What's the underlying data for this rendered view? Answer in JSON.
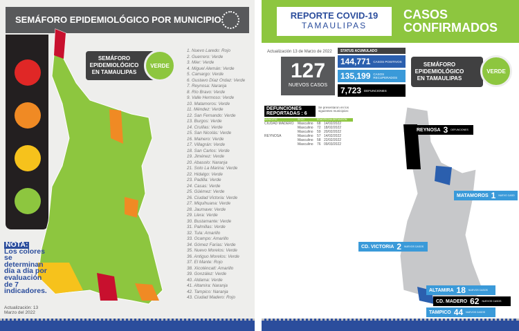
{
  "left": {
    "title": "SEMÁFORO EPIDEMIOLÓGICO POR MUNICIPIO",
    "badge_label": "SEMÁFORO EPIDEMIOLÓGICO EN TAMAULIPAS",
    "badge_status": "VERDE",
    "traffic_light_colors": [
      "#e02726",
      "#f08a24",
      "#f6c21c",
      "#8dc63f"
    ],
    "municipios": [
      "1. Nuevo Laredo: Rojo",
      "2. Guerrero: Verde",
      "3. Mier: Verde",
      "4. Miguel Alemán: Verde",
      "5. Camargo: Verde",
      "6. Gustavo Díaz Ordaz: Verde",
      "7. Reynosa: Naranja",
      "8. Río Bravo: Verde",
      "9. Valle Hermoso: Verde",
      "10. Matamoros: Verde",
      "11. Méndez: Verde",
      "12. San Fernando: Verde",
      "13. Burgos: Verde",
      "14. Cruillas: Verde",
      "15. San Nicolás: Verde",
      "16. Mainero: Verde",
      "17. Villagrán: Verde",
      "18. San Carlos: Verde",
      "19. Jiménez: Verde",
      "20. Abasolo: Naranja",
      "21. Soto La Marina: Verde",
      "22. Hidalgo: Verde",
      "23. Padilla: Verde",
      "24. Casas: Verde",
      "25. Güémez: Verde",
      "26. Ciudad Victoria: Verde",
      "27. Miquihuana: Verde",
      "28. Jaumave: Verde",
      "29. Llera: Verde",
      "30. Bustamante: Verde",
      "31. Palmillas: Verde",
      "32. Tula: Amarillo",
      "33. Ocampo: Amarillo",
      "34. Gómez Farías: Verde",
      "35. Nuevo Morelos: Verde",
      "36. Antiguo Morelos: Verde",
      "37. El Mante: Rojo",
      "38. Xicoténcatl: Amarillo",
      "39. González: Verde",
      "40. Aldama: Verde",
      "41. Altamira: Naranja",
      "42. Tampico: Naranja",
      "43. Ciudad Madero: Rojo"
    ],
    "nota_title": "NOTA:",
    "nota_text": "Los colores se determinan día a día por evaluación de 7 indicadores.",
    "update": "Actualización: 13 Marzo del 2022"
  },
  "right": {
    "logo_line1": "REPORTE COVID-19",
    "logo_line2": "TAMAULIPAS",
    "title": "CASOS CONFIRMADOS",
    "update": "Actualización 13 de Marzo de 2022",
    "new_cases": "127",
    "new_cases_label": "NUEVOS CASOS",
    "status_label": "STATUS ACUMULADO",
    "positivos": {
      "value": "144,771",
      "label": "CASOS POSITIVOS"
    },
    "recuperados": {
      "value": "135,199",
      "label": "CASOS RECUPERADOS"
    },
    "defunciones": {
      "value": "7,723",
      "label": "DEFUNCIONES"
    },
    "badge_label": "SEMÁFORO EPIDEMIOLÓGICO EN TAMAULIPAS",
    "badge_status": "VERDE",
    "deaths_title": "DEFUNCIONES REPORTADAS : 6",
    "deaths_note": "Se presentaron en los siguientes municipios:",
    "deaths_headers": [
      "MUNICIPIO",
      "SEXO",
      "EDAD",
      "FECHA DEFUNCIÓN"
    ],
    "deaths_rows": [
      [
        "CIUDAD MADERO",
        "Masculino",
        "68",
        "14/02/2022"
      ],
      [
        "",
        "Masculino",
        "72",
        "18/02/2022"
      ],
      [
        "",
        "Masculino",
        "59",
        "20/02/2022"
      ],
      [
        "REYNOSA",
        "Masculino",
        "57",
        "14/02/2022"
      ],
      [
        "",
        "Masculino",
        "58",
        "22/02/2022"
      ],
      [
        "",
        "Masculino",
        "76",
        "09/03/2022"
      ]
    ],
    "cities": [
      {
        "name": "REYNOSA",
        "count": "3",
        "label": "DEFUNCIONES",
        "bg": "#000000"
      },
      {
        "name": "MATAMOROS",
        "count": "1",
        "label": "NUEVO CASO",
        "bg": "#3a9ad9"
      },
      {
        "name": "CD. VICTORIA",
        "count": "2",
        "label": "NUEVOS CASOS",
        "bg": "#3a9ad9"
      },
      {
        "name": "ALTAMIRA",
        "count": "18",
        "label": "NUEVOS CASOS",
        "bg": "#3a9ad9"
      },
      {
        "name": "CD. MADERO",
        "count": "62",
        "label": "NUEVOS CASOS",
        "bg": "#000000"
      },
      {
        "name": "TAMPICO",
        "count": "44",
        "label": "NUEVOS CASOS",
        "bg": "#3a9ad9"
      }
    ]
  }
}
